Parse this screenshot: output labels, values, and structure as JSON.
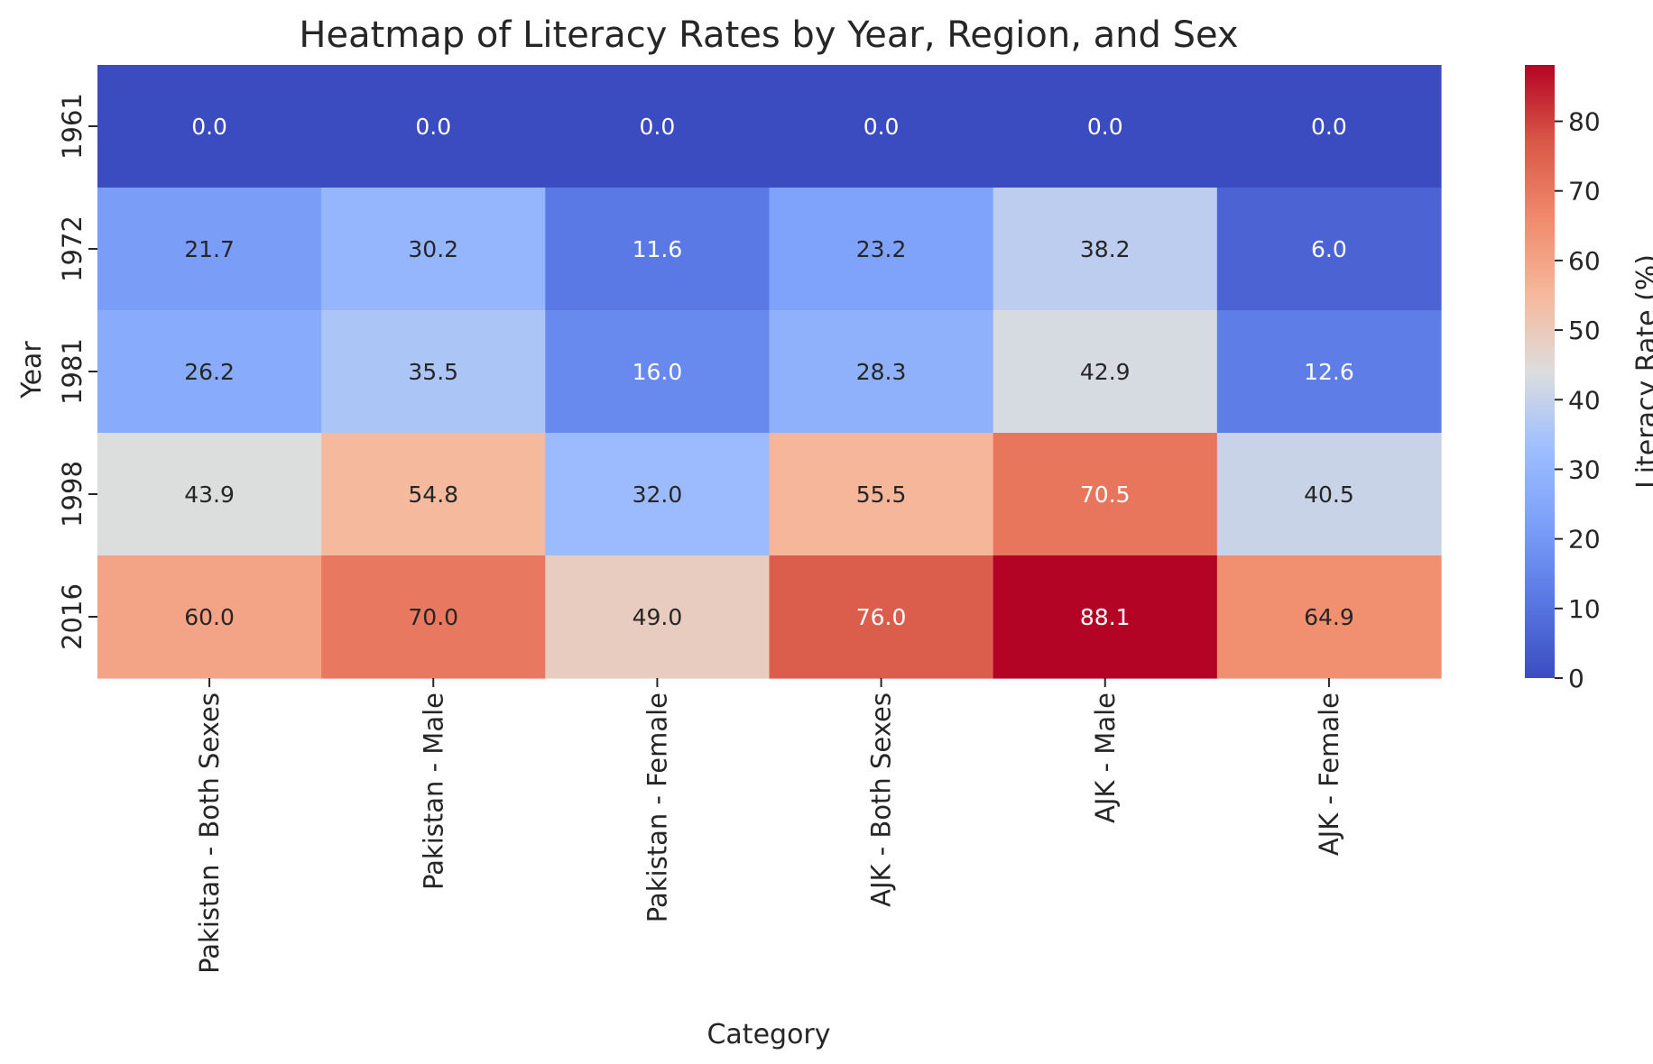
{
  "chart_data": {
    "type": "heatmap",
    "title": "Heatmap of Literacy Rates by Year, Region, and Sex",
    "xlabel": "Category",
    "ylabel": "Year",
    "x_categories": [
      "Pakistan - Both Sexes",
      "Pakistan - Male",
      "Pakistan - Female",
      "AJK - Both Sexes",
      "AJK - Male",
      "AJK - Female"
    ],
    "y_categories": [
      "1961",
      "1972",
      "1981",
      "1998",
      "2016"
    ],
    "values": [
      [
        0.0,
        0.0,
        0.0,
        0.0,
        0.0,
        0.0
      ],
      [
        21.7,
        30.2,
        11.6,
        23.2,
        38.2,
        6.0
      ],
      [
        26.2,
        35.5,
        16.0,
        28.3,
        42.9,
        12.6
      ],
      [
        43.9,
        54.8,
        32.0,
        55.5,
        70.5,
        40.5
      ],
      [
        60.0,
        70.0,
        49.0,
        76.0,
        88.1,
        64.9
      ]
    ],
    "value_format": "0.0",
    "colormap": "coolwarm",
    "colorbar": {
      "label": "Literacy Rate (%)",
      "range": [
        0,
        88.1
      ],
      "ticks": [
        0,
        10,
        20,
        30,
        40,
        50,
        60,
        70,
        80
      ]
    }
  }
}
